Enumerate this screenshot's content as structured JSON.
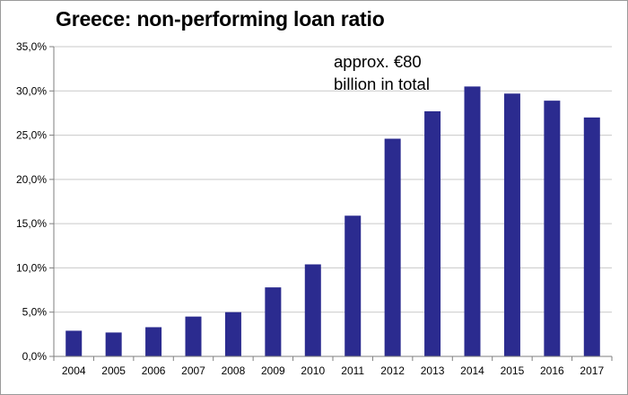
{
  "chart_data": {
    "type": "bar",
    "title": "Greece: non-performing loan ratio",
    "annotation": [
      "approx. €80",
      "billion in total"
    ],
    "categories": [
      "2004",
      "2005",
      "2006",
      "2007",
      "2008",
      "2009",
      "2010",
      "2011",
      "2012",
      "2013",
      "2014",
      "2015",
      "2016",
      "2017"
    ],
    "values": [
      2.9,
      2.7,
      3.3,
      4.5,
      5.0,
      7.8,
      10.4,
      15.9,
      24.6,
      27.7,
      30.5,
      29.7,
      28.9,
      27.0
    ],
    "ylim": [
      0,
      35
    ],
    "yticks": [
      0,
      5,
      10,
      15,
      20,
      25,
      30,
      35
    ],
    "ytick_labels": [
      "0,0%",
      "5,0%",
      "10,0%",
      "15,0%",
      "20,0%",
      "25,0%",
      "30,0%",
      "35,0%"
    ],
    "xlabel": "",
    "ylabel": "",
    "grid": true,
    "colors": {
      "bar": "#2b2b8f",
      "grid": "#c9c9c9",
      "axis": "#7f7f7f"
    }
  }
}
